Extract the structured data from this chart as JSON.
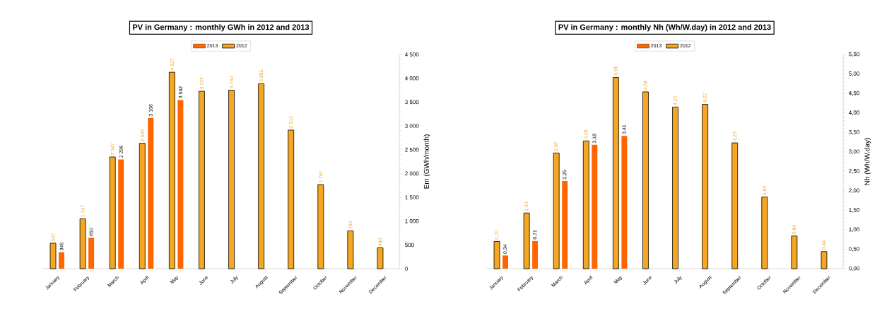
{
  "chart_data": [
    {
      "type": "bar",
      "title": "PV in Germany : monthly GWh in 2012 and 2013",
      "ylabel": "Em (GWh/month)",
      "legend": "top",
      "categories": [
        "January",
        "February",
        "March",
        "April",
        "May",
        "June",
        "July",
        "August",
        "September",
        "October",
        "November",
        "December"
      ],
      "ylim": [
        0,
        4500
      ],
      "yticks": [
        {
          "value": 0,
          "label": "0"
        },
        {
          "value": 500,
          "label": "500"
        },
        {
          "value": 1000,
          "label": "1 000"
        },
        {
          "value": 1500,
          "label": "1 500"
        },
        {
          "value": 2000,
          "label": "2 000"
        },
        {
          "value": 2500,
          "label": "2 500"
        },
        {
          "value": 3000,
          "label": "3 000"
        },
        {
          "value": 3500,
          "label": "3 500"
        },
        {
          "value": 4000,
          "label": "4 000"
        },
        {
          "value": 4500,
          "label": "4 500"
        }
      ],
      "series": [
        {
          "name": "2012",
          "color": "#f5a623",
          "values": [
            537,
            1047,
            2347,
            2634,
            4127,
            3727,
            3750,
            3885,
            2912,
            1767,
            794,
            440
          ],
          "value_labels": [
            "537",
            "1 047",
            "2 347",
            "2 634",
            "4 127",
            "3 727",
            "3 750",
            "3 885",
            "2 912",
            "1 767",
            "794",
            "440"
          ]
        },
        {
          "name": "2013",
          "color": "#ff6600",
          "values": [
            346,
            650,
            2296,
            3166,
            3542,
            null,
            null,
            null,
            null,
            null,
            null,
            null
          ],
          "value_labels": [
            "346",
            "650",
            "2 296",
            "3 166",
            "3 542",
            null,
            null,
            null,
            null,
            null,
            null,
            null
          ]
        }
      ]
    },
    {
      "type": "bar",
      "title": "PV in Germany : monthly Nh (Wh/W.day) in 2012 and 2013",
      "ylabel": "Nh (Wh/W.day)",
      "legend": "top",
      "categories": [
        "January",
        "February",
        "March",
        "April",
        "May",
        "June",
        "July",
        "August",
        "September",
        "October",
        "November",
        "December"
      ],
      "ylim": [
        0,
        5.5
      ],
      "yticks": [
        {
          "value": 0,
          "label": "0,00"
        },
        {
          "value": 0.5,
          "label": "0,50"
        },
        {
          "value": 1,
          "label": "1,00"
        },
        {
          "value": 1.5,
          "label": "1,50"
        },
        {
          "value": 2,
          "label": "2,00"
        },
        {
          "value": 2.5,
          "label": "2,50"
        },
        {
          "value": 3,
          "label": "3,00"
        },
        {
          "value": 3.5,
          "label": "3,50"
        },
        {
          "value": 4,
          "label": "4,00"
        },
        {
          "value": 4.5,
          "label": "4,50"
        },
        {
          "value": 5,
          "label": "5,00"
        },
        {
          "value": 5.5,
          "label": "5,50"
        }
      ],
      "series": [
        {
          "name": "2012",
          "color": "#f5a623",
          "values": [
            0.7,
            1.43,
            2.97,
            3.28,
            4.91,
            4.54,
            4.15,
            4.22,
            3.23,
            1.84,
            0.84,
            0.44
          ],
          "value_labels": [
            "0,70",
            "1,43",
            "2,97",
            "3,28",
            "4,91",
            "4,54",
            "4,15",
            "4,22",
            "3,23",
            "1,84",
            "0,84",
            "0,44"
          ]
        },
        {
          "name": "2013",
          "color": "#ff6600",
          "values": [
            0.34,
            0.71,
            2.25,
            3.18,
            3.41,
            null,
            null,
            null,
            null,
            null,
            null,
            null
          ],
          "value_labels": [
            "0,34",
            "0,71",
            "2,25",
            "3,18",
            "3,41",
            null,
            null,
            null,
            null,
            null,
            null,
            null
          ]
        }
      ]
    }
  ]
}
